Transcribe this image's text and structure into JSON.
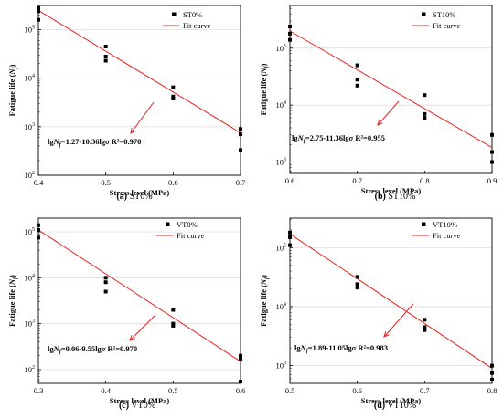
{
  "chart_data": [
    {
      "type": "scatter",
      "panel": "(a)",
      "caption": "ST0%",
      "xlabel": "Stress level (MPa)",
      "ylabel_pre": "Fatigue life (",
      "ylabel_sym": "N",
      "ylabel_sub": "f",
      "ylabel_post": ")",
      "xlim": [
        0.4,
        0.7
      ],
      "ylim_log10": [
        2,
        5.5
      ],
      "log_y": true,
      "xticks": [
        "0.4",
        "0.5",
        "0.6",
        "0.7"
      ],
      "yticks": [
        {
          "base": "10",
          "exp": "2"
        },
        {
          "base": "10",
          "exp": "3"
        },
        {
          "base": "10",
          "exp": "4"
        },
        {
          "base": "10",
          "exp": "5"
        }
      ],
      "legend": {
        "points": "ST0%",
        "line": "Fit curve"
      },
      "annotation": {
        "eq_prefix": "lg",
        "eq_sym": "N",
        "eq_sub": "f",
        "eq_body": "=1.27-10.36lg",
        "eq_sigma": "σ",
        "r2": "R²=0.970"
      },
      "points": [
        [
          0.4,
          280000
        ],
        [
          0.4,
          240000
        ],
        [
          0.4,
          160000
        ],
        [
          0.5,
          45000
        ],
        [
          0.5,
          28000
        ],
        [
          0.5,
          23000
        ],
        [
          0.6,
          6500
        ],
        [
          0.6,
          4200
        ],
        [
          0.6,
          3800
        ],
        [
          0.7,
          900
        ],
        [
          0.7,
          700
        ],
        [
          0.7,
          330
        ]
      ],
      "fit": [
        [
          0.4,
          250000
        ],
        [
          0.7,
          750
        ]
      ]
    },
    {
      "type": "scatter",
      "panel": "(b)",
      "caption": "ST10%",
      "xlabel": "Stress level (MPa)",
      "ylabel_pre": "Fatigue life (",
      "ylabel_sym": "N",
      "ylabel_sub": "f",
      "ylabel_post": ")",
      "xlim": [
        0.6,
        0.9
      ],
      "ylim_log10": [
        2.8,
        5.75
      ],
      "log_y": true,
      "xticks": [
        "0.6",
        "0.7",
        "0.8",
        "0.9"
      ],
      "yticks": [
        {
          "base": "10",
          "exp": "3"
        },
        {
          "base": "10",
          "exp": "4"
        },
        {
          "base": "10",
          "exp": "5"
        }
      ],
      "legend": {
        "points": "ST10%",
        "line": "Fit curve"
      },
      "annotation": {
        "eq_prefix": "lg",
        "eq_sym": "N",
        "eq_sub": "f",
        "eq_body": "=2.75-11.36lg",
        "eq_sigma": "σ",
        "r2": "R²=0.955"
      },
      "points": [
        [
          0.6,
          240000
        ],
        [
          0.6,
          180000
        ],
        [
          0.6,
          140000
        ],
        [
          0.7,
          50000
        ],
        [
          0.7,
          28000
        ],
        [
          0.7,
          22000
        ],
        [
          0.8,
          15000
        ],
        [
          0.8,
          7000
        ],
        [
          0.8,
          6000
        ],
        [
          0.9,
          3000
        ],
        [
          0.9,
          1500
        ],
        [
          0.9,
          1000
        ]
      ],
      "fit": [
        [
          0.6,
          200000
        ],
        [
          0.9,
          1800
        ]
      ]
    },
    {
      "type": "scatter",
      "panel": "(c)",
      "caption": "VT0%",
      "xlabel": "Stress level (MPa)",
      "ylabel_pre": "Fatigue life (",
      "ylabel_sym": "N",
      "ylabel_sub": "f",
      "ylabel_post": ")",
      "xlim": [
        0.3,
        0.6
      ],
      "ylim_log10": [
        1.7,
        5.3
      ],
      "log_y": true,
      "xticks": [
        "0.3",
        "0.4",
        "0.5",
        "0.6"
      ],
      "yticks": [
        {
          "base": "10",
          "exp": "2"
        },
        {
          "base": "10",
          "exp": "3"
        },
        {
          "base": "10",
          "exp": "4"
        },
        {
          "base": "10",
          "exp": "5"
        }
      ],
      "legend": {
        "points": "VT0%",
        "line": "Fit curve"
      },
      "annotation": {
        "eq_prefix": "lg",
        "eq_sym": "N",
        "eq_sub": "f",
        "eq_body": "=0.06-9.55lg",
        "eq_sigma": "σ",
        "r2": "R²=0.970"
      },
      "points": [
        [
          0.3,
          140000
        ],
        [
          0.3,
          110000
        ],
        [
          0.3,
          75000
        ],
        [
          0.4,
          10000
        ],
        [
          0.4,
          8000
        ],
        [
          0.4,
          5000
        ],
        [
          0.5,
          2000
        ],
        [
          0.5,
          1000
        ],
        [
          0.5,
          900
        ],
        [
          0.6,
          200
        ],
        [
          0.6,
          170
        ],
        [
          0.6,
          55
        ]
      ],
      "fit": [
        [
          0.3,
          110000
        ],
        [
          0.6,
          150
        ]
      ]
    },
    {
      "type": "scatter",
      "panel": "(d)",
      "caption": "VT10%",
      "xlabel": "Stress level (MPa)",
      "ylabel_pre": "Fatigue life (",
      "ylabel_sym": "N",
      "ylabel_sub": "f",
      "ylabel_post": ")",
      "xlim": [
        0.5,
        0.8
      ],
      "ylim_log10": [
        2.7,
        5.5
      ],
      "log_y": true,
      "xticks": [
        "0.5",
        "0.6",
        "0.7",
        "0.8"
      ],
      "yticks": [
        {
          "base": "10",
          "exp": "3"
        },
        {
          "base": "10",
          "exp": "4"
        },
        {
          "base": "10",
          "exp": "5"
        }
      ],
      "legend": {
        "points": "VT10%",
        "line": "Fit curve"
      },
      "annotation": {
        "eq_prefix": "lg",
        "eq_sym": "N",
        "eq_sub": "f",
        "eq_body": "=1.89-11.05lg",
        "eq_sigma": "σ",
        "r2": "R²=0.983"
      },
      "points": [
        [
          0.5,
          180000
        ],
        [
          0.5,
          150000
        ],
        [
          0.5,
          110000
        ],
        [
          0.6,
          32000
        ],
        [
          0.6,
          24000
        ],
        [
          0.6,
          21000
        ],
        [
          0.7,
          6000
        ],
        [
          0.7,
          4500
        ],
        [
          0.7,
          4000
        ],
        [
          0.8,
          1000
        ],
        [
          0.8,
          750
        ],
        [
          0.8,
          580
        ]
      ],
      "fit": [
        [
          0.5,
          170000
        ],
        [
          0.8,
          900
        ]
      ]
    }
  ],
  "colors": {
    "fit": "#e8201e",
    "arrow": "#e8201e",
    "grid": "#d9d9d9",
    "points": "#000000"
  }
}
